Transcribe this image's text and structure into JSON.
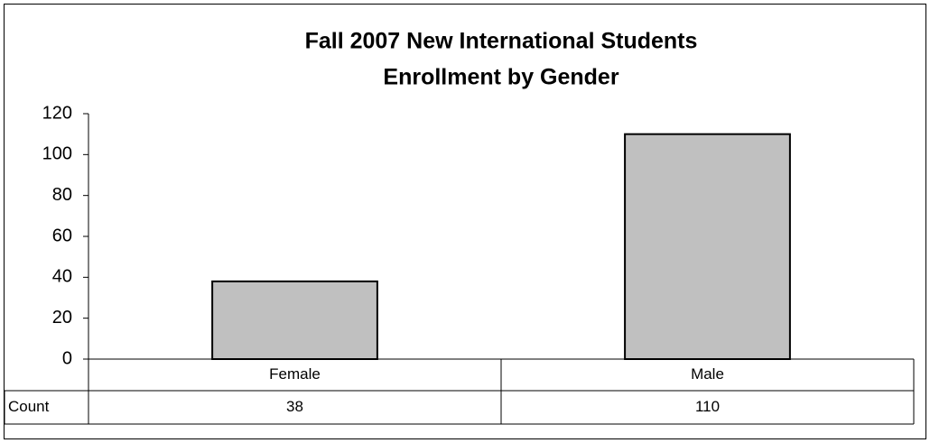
{
  "chart_data": {
    "type": "bar",
    "title": [
      "Fall 2007 New International Students",
      "Enrollment by Gender"
    ],
    "categories": [
      "Female",
      "Male"
    ],
    "values": [
      38,
      110
    ],
    "color": "#c0c0c0",
    "ylim": [
      0,
      120
    ],
    "yticks": [
      0,
      20,
      40,
      60,
      80,
      100,
      120
    ],
    "grid": false,
    "data_table_label": "Count"
  }
}
